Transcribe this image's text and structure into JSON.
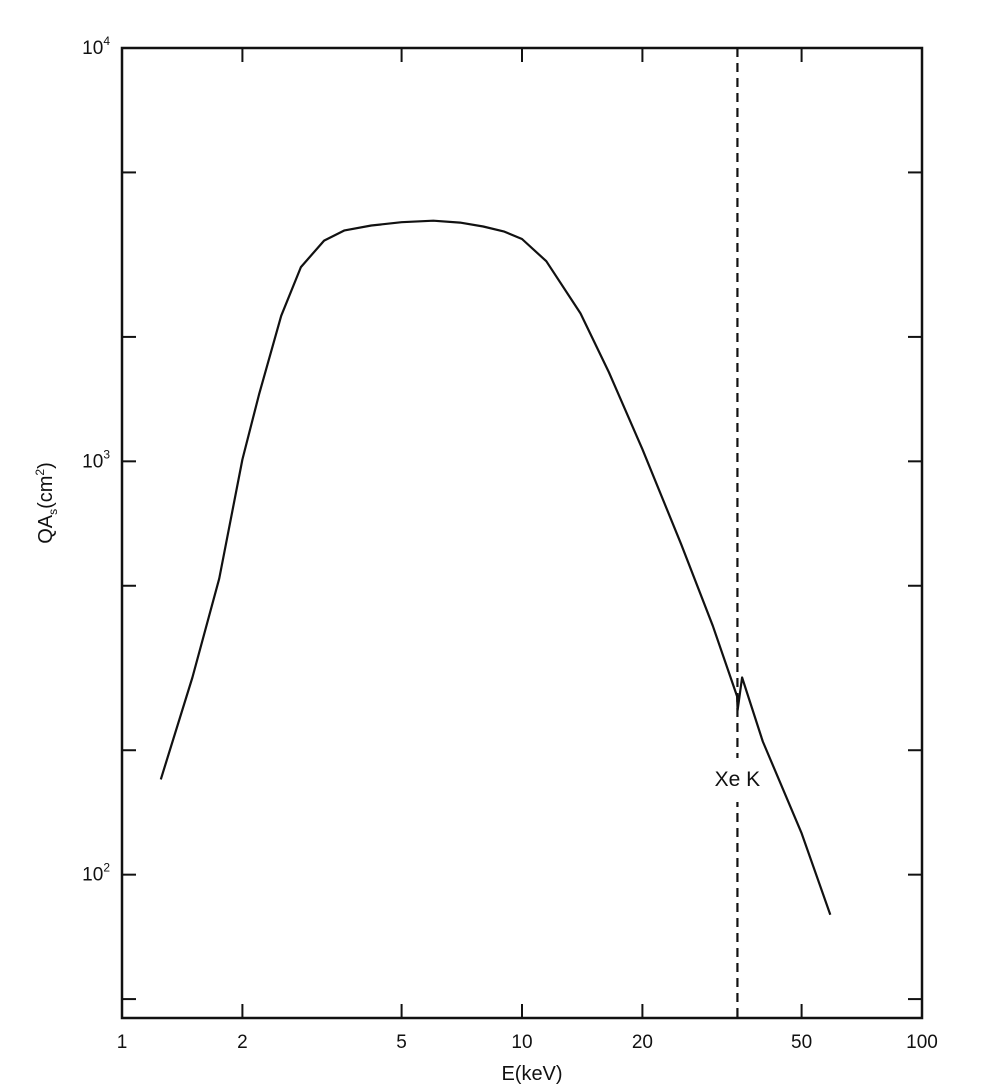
{
  "chart_data": {
    "type": "line",
    "xscale": "log",
    "yscale": "log",
    "xlim": [
      1,
      100
    ],
    "ylim": [
      45,
      10000
    ],
    "xlabel": "E(keV)",
    "ylabel": {
      "base": "QA",
      "sub": "s",
      "unit_pre": "(cm",
      "unit_sup": "2",
      "unit_post": ")"
    },
    "grid": false,
    "x_ticks": [
      {
        "value": 1,
        "label": "1"
      },
      {
        "value": 2,
        "label": "2"
      },
      {
        "value": 5,
        "label": "5"
      },
      {
        "value": 10,
        "label": "10"
      },
      {
        "value": 20,
        "label": "20"
      },
      {
        "value": 50,
        "label": "50"
      },
      {
        "value": 100,
        "label": "100"
      }
    ],
    "y_major_ticks": [
      {
        "value": 100,
        "base": "10",
        "exp": "2"
      },
      {
        "value": 1000,
        "base": "10",
        "exp": "3"
      },
      {
        "value": 10000,
        "base": "10",
        "exp": "4"
      }
    ],
    "y_minor_ticks": [
      50,
      200,
      500,
      2000,
      5000
    ],
    "series": [
      {
        "x": [
          1.25,
          1.5,
          1.75,
          2.0,
          2.2,
          2.5,
          2.8,
          3.2,
          3.6,
          4.2,
          5.0,
          6.0,
          7.0,
          8.0,
          9.0,
          10.0,
          11.5,
          14.0,
          16.5,
          20.0,
          25.0,
          30.0,
          34.5,
          34.6,
          35.5,
          40.0,
          50.0,
          59.0
        ],
        "y": [
          170,
          300,
          520,
          1010,
          1450,
          2250,
          2950,
          3420,
          3620,
          3720,
          3790,
          3820,
          3780,
          3700,
          3600,
          3450,
          3050,
          2280,
          1640,
          1070,
          630,
          400,
          270,
          250,
          300,
          210,
          126,
          80
        ]
      }
    ],
    "annotations": [
      {
        "type": "vline",
        "x": 34.56,
        "style": "dashed",
        "label": "Xe K"
      }
    ]
  }
}
